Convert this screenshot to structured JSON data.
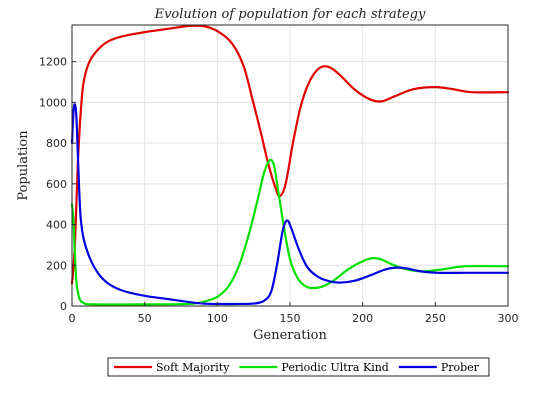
{
  "chart_data": {
    "type": "line",
    "title": "Evolution of population for each strategy",
    "xlabel": "Generation",
    "ylabel": "Population",
    "xlim": [
      0,
      300
    ],
    "ylim": [
      0,
      1380
    ],
    "xticks": [
      0,
      50,
      100,
      150,
      200,
      250,
      300
    ],
    "yticks": [
      0,
      200,
      400,
      600,
      800,
      1000,
      1200
    ],
    "grid": true,
    "legend_position": "bottom-center",
    "series": [
      {
        "name": "Soft Majority",
        "color": "#e00000",
        "points": [
          [
            0,
            110
          ],
          [
            2,
            300
          ],
          [
            4,
            700
          ],
          [
            6,
            950
          ],
          [
            8,
            1100
          ],
          [
            12,
            1200
          ],
          [
            18,
            1260
          ],
          [
            25,
            1300
          ],
          [
            35,
            1325
          ],
          [
            50,
            1345
          ],
          [
            65,
            1360
          ],
          [
            80,
            1375
          ],
          [
            90,
            1375
          ],
          [
            100,
            1350
          ],
          [
            110,
            1290
          ],
          [
            118,
            1180
          ],
          [
            124,
            1020
          ],
          [
            130,
            850
          ],
          [
            135,
            700
          ],
          [
            140,
            580
          ],
          [
            143,
            540
          ],
          [
            147,
            600
          ],
          [
            152,
            800
          ],
          [
            157,
            970
          ],
          [
            162,
            1080
          ],
          [
            167,
            1145
          ],
          [
            172,
            1175
          ],
          [
            178,
            1170
          ],
          [
            185,
            1130
          ],
          [
            195,
            1060
          ],
          [
            205,
            1015
          ],
          [
            213,
            1005
          ],
          [
            222,
            1030
          ],
          [
            235,
            1065
          ],
          [
            250,
            1075
          ],
          [
            262,
            1065
          ],
          [
            275,
            1050
          ],
          [
            300,
            1050
          ]
        ]
      },
      {
        "name": "Periodic Ultra Kind",
        "color": "#00e000",
        "points": [
          [
            0,
            500
          ],
          [
            1,
            420
          ],
          [
            2,
            250
          ],
          [
            3,
            120
          ],
          [
            5,
            40
          ],
          [
            8,
            15
          ],
          [
            15,
            8
          ],
          [
            50,
            8
          ],
          [
            80,
            10
          ],
          [
            90,
            20
          ],
          [
            100,
            45
          ],
          [
            108,
            100
          ],
          [
            115,
            200
          ],
          [
            122,
            360
          ],
          [
            128,
            530
          ],
          [
            132,
            650
          ],
          [
            136,
            715
          ],
          [
            139,
            690
          ],
          [
            142,
            560
          ],
          [
            146,
            380
          ],
          [
            150,
            230
          ],
          [
            155,
            140
          ],
          [
            160,
            100
          ],
          [
            165,
            88
          ],
          [
            172,
            95
          ],
          [
            180,
            125
          ],
          [
            190,
            180
          ],
          [
            200,
            220
          ],
          [
            207,
            235
          ],
          [
            213,
            228
          ],
          [
            220,
            205
          ],
          [
            230,
            180
          ],
          [
            240,
            170
          ],
          [
            255,
            180
          ],
          [
            270,
            195
          ],
          [
            300,
            195
          ]
        ]
      },
      {
        "name": "Prober",
        "color": "#0000e0",
        "points": [
          [
            0,
            800
          ],
          [
            1,
            950
          ],
          [
            2,
            990
          ],
          [
            3,
            930
          ],
          [
            4,
            750
          ],
          [
            5,
            560
          ],
          [
            6,
            430
          ],
          [
            8,
            330
          ],
          [
            12,
            240
          ],
          [
            18,
            160
          ],
          [
            25,
            110
          ],
          [
            35,
            75
          ],
          [
            50,
            50
          ],
          [
            65,
            35
          ],
          [
            80,
            20
          ],
          [
            90,
            12
          ],
          [
            100,
            10
          ],
          [
            115,
            10
          ],
          [
            125,
            12
          ],
          [
            132,
            25
          ],
          [
            137,
            70
          ],
          [
            141,
            200
          ],
          [
            145,
            370
          ],
          [
            148,
            420
          ],
          [
            151,
            380
          ],
          [
            156,
            280
          ],
          [
            162,
            190
          ],
          [
            170,
            140
          ],
          [
            178,
            120
          ],
          [
            185,
            115
          ],
          [
            195,
            125
          ],
          [
            205,
            150
          ],
          [
            215,
            178
          ],
          [
            222,
            188
          ],
          [
            230,
            185
          ],
          [
            240,
            170
          ],
          [
            252,
            163
          ],
          [
            270,
            163
          ],
          [
            300,
            163
          ]
        ]
      }
    ]
  }
}
